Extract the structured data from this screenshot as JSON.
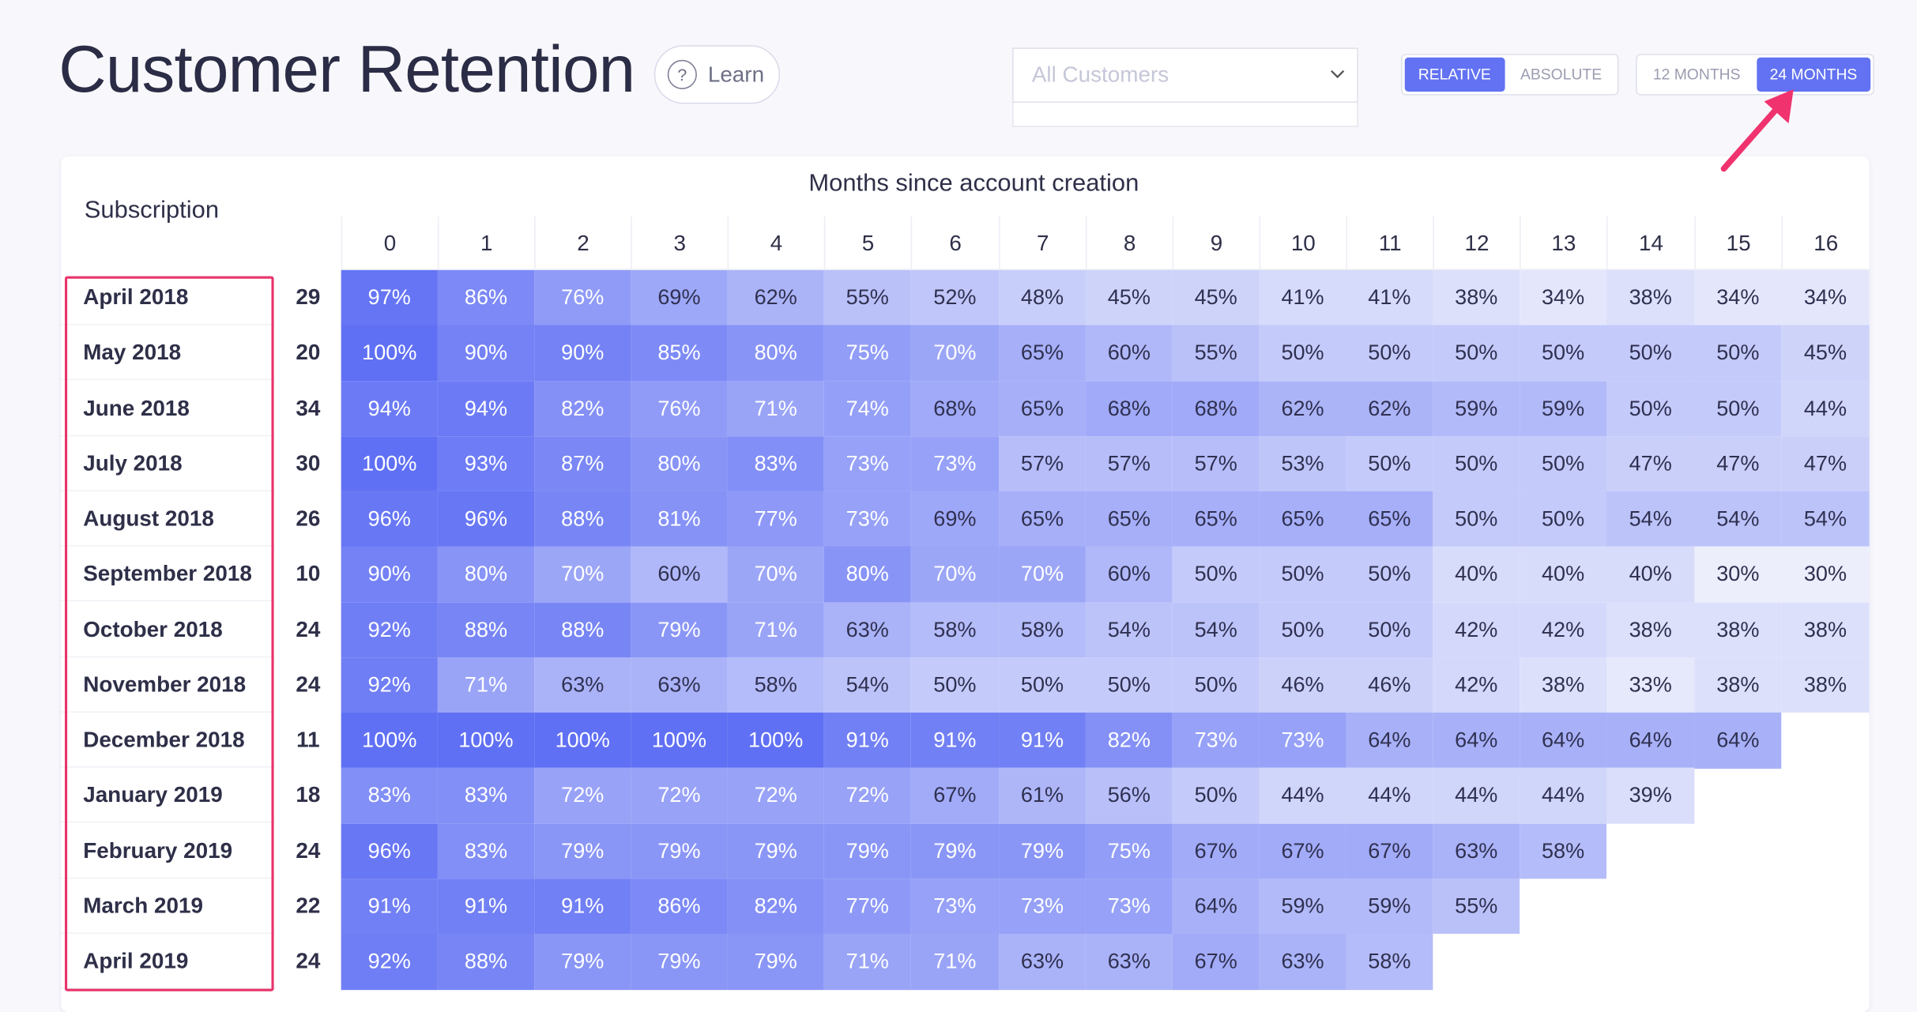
{
  "header": {
    "title": "Customer Retention",
    "learn": "Learn",
    "filter": "All Customers",
    "mode_toggle": [
      "RELATIVE",
      "ABSOLUTE"
    ],
    "range_toggle": [
      "12 MONTHS",
      "24 MONTHS"
    ]
  },
  "table": {
    "row_header": "Subscription",
    "column_group": "Months since account creation",
    "columns": [
      0,
      1,
      2,
      3,
      4,
      5,
      6,
      7,
      8,
      9,
      10,
      11,
      12,
      13,
      14,
      15,
      16
    ],
    "rows": [
      {
        "label": "April 2018",
        "count": 29,
        "cells": [
          "97%",
          "86%",
          "76%",
          "69%",
          "62%",
          "55%",
          "52%",
          "48%",
          "45%",
          "45%",
          "41%",
          "41%",
          "38%",
          "34%",
          "38%",
          "34%",
          "34%"
        ]
      },
      {
        "label": "May 2018",
        "count": 20,
        "cells": [
          "100%",
          "90%",
          "90%",
          "85%",
          "80%",
          "75%",
          "70%",
          "65%",
          "60%",
          "55%",
          "50%",
          "50%",
          "50%",
          "50%",
          "50%",
          "50%",
          "45%"
        ]
      },
      {
        "label": "June 2018",
        "count": 34,
        "cells": [
          "94%",
          "94%",
          "82%",
          "76%",
          "71%",
          "74%",
          "68%",
          "65%",
          "68%",
          "68%",
          "62%",
          "62%",
          "59%",
          "59%",
          "50%",
          "50%",
          "44%"
        ]
      },
      {
        "label": "July 2018",
        "count": 30,
        "cells": [
          "100%",
          "93%",
          "87%",
          "80%",
          "83%",
          "73%",
          "73%",
          "57%",
          "57%",
          "57%",
          "53%",
          "50%",
          "50%",
          "50%",
          "47%",
          "47%",
          "47%"
        ]
      },
      {
        "label": "August 2018",
        "count": 26,
        "cells": [
          "96%",
          "96%",
          "88%",
          "81%",
          "77%",
          "73%",
          "69%",
          "65%",
          "65%",
          "65%",
          "65%",
          "65%",
          "50%",
          "50%",
          "54%",
          "54%",
          "54%"
        ]
      },
      {
        "label": "September 2018",
        "count": 10,
        "cells": [
          "90%",
          "80%",
          "70%",
          "60%",
          "70%",
          "80%",
          "70%",
          "70%",
          "60%",
          "50%",
          "50%",
          "50%",
          "40%",
          "40%",
          "40%",
          "30%",
          "30%"
        ]
      },
      {
        "label": "October 2018",
        "count": 24,
        "cells": [
          "92%",
          "88%",
          "88%",
          "79%",
          "71%",
          "63%",
          "58%",
          "58%",
          "54%",
          "54%",
          "50%",
          "50%",
          "42%",
          "42%",
          "38%",
          "38%",
          "38%"
        ]
      },
      {
        "label": "November 2018",
        "count": 24,
        "cells": [
          "92%",
          "71%",
          "63%",
          "63%",
          "58%",
          "54%",
          "50%",
          "50%",
          "50%",
          "50%",
          "46%",
          "46%",
          "42%",
          "38%",
          "33%",
          "38%",
          "38%"
        ]
      },
      {
        "label": "December 2018",
        "count": 11,
        "cells": [
          "100%",
          "100%",
          "100%",
          "100%",
          "100%",
          "91%",
          "91%",
          "91%",
          "82%",
          "73%",
          "73%",
          "64%",
          "64%",
          "64%",
          "64%",
          "64%"
        ]
      },
      {
        "label": "January 2019",
        "count": 18,
        "cells": [
          "83%",
          "83%",
          "72%",
          "72%",
          "72%",
          "72%",
          "67%",
          "61%",
          "56%",
          "50%",
          "44%",
          "44%",
          "44%",
          "44%",
          "39%"
        ]
      },
      {
        "label": "February 2019",
        "count": 24,
        "cells": [
          "96%",
          "83%",
          "79%",
          "79%",
          "79%",
          "79%",
          "79%",
          "79%",
          "75%",
          "67%",
          "67%",
          "67%",
          "63%",
          "58%"
        ]
      },
      {
        "label": "March 2019",
        "count": 22,
        "cells": [
          "91%",
          "91%",
          "91%",
          "86%",
          "82%",
          "77%",
          "73%",
          "73%",
          "73%",
          "64%",
          "59%",
          "59%",
          "55%"
        ]
      },
      {
        "label": "April 2019",
        "count": 24,
        "cells": [
          "92%",
          "88%",
          "79%",
          "79%",
          "79%",
          "71%",
          "71%",
          "63%",
          "63%",
          "67%",
          "63%",
          "58%"
        ]
      }
    ]
  }
}
